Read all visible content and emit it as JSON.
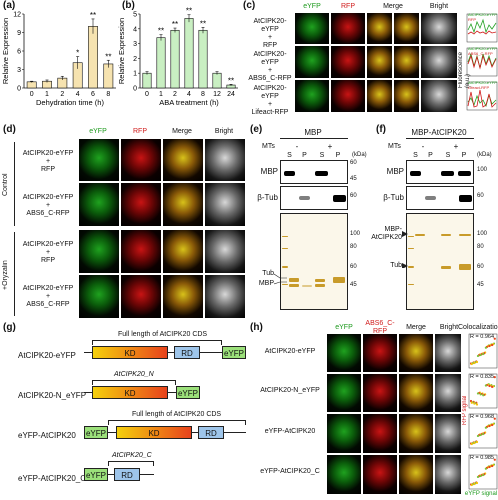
{
  "panels": {
    "a": {
      "label": "(a)"
    },
    "b": {
      "label": "(b)"
    },
    "c": {
      "label": "(c)"
    },
    "d": {
      "label": "(d)"
    },
    "e": {
      "label": "(e)"
    },
    "f": {
      "label": "(f)"
    },
    "g": {
      "label": "(g)"
    },
    "h": {
      "label": "(h)"
    }
  },
  "chart_data": [
    {
      "type": "bar",
      "panel": "a",
      "categories": [
        "0",
        "1",
        "2",
        "4",
        "6",
        "8"
      ],
      "values": [
        1.0,
        1.1,
        1.6,
        4.1,
        10.0,
        3.9
      ],
      "errors": [
        0.1,
        0.2,
        0.3,
        1.0,
        1.2,
        0.6
      ],
      "significance": [
        "",
        "",
        "",
        "*",
        "**",
        "**"
      ],
      "xlabel": "Dehydration time (h)",
      "ylabel": "Relative Expression",
      "yticks": [
        "0",
        "3",
        "6",
        "9",
        "12"
      ],
      "ylim": [
        0,
        12
      ],
      "color": "#f6e3b0"
    },
    {
      "type": "bar",
      "panel": "b",
      "categories": [
        "0",
        "1",
        "2",
        "4",
        "8",
        "12",
        "24"
      ],
      "values": [
        1.0,
        3.4,
        3.9,
        4.7,
        3.9,
        1.0,
        0.2
      ],
      "errors": [
        0.1,
        0.2,
        0.15,
        0.25,
        0.2,
        0.1,
        0.05
      ],
      "significance": [
        "",
        "**",
        "**",
        "**",
        "**",
        "",
        "**"
      ],
      "xlabel": "ABA treatment (h)",
      "ylabel": "Relative Expression",
      "yticks": [
        "0",
        "1",
        "2",
        "3",
        "4",
        "5"
      ],
      "ylim": [
        0,
        5
      ],
      "color": "#c9efc2"
    }
  ],
  "c": {
    "col_headers": [
      "eYFP",
      "RFP",
      "Merge",
      "Bright"
    ],
    "rows": [
      {
        "line1": "AtCIPK20-eYFP",
        "line2": "+",
        "line3": "RFP"
      },
      {
        "line1": "AtCIPK20-eYFP",
        "line2": "+",
        "line3": "ABS6_C-RFP"
      },
      {
        "line1": "AtCIPK20-eYFP",
        "line2": "+",
        "line3": "Lifeact-RFP"
      }
    ],
    "profile_ylabel": "Fluorescence (a.u.)",
    "profile_legends": [
      [
        "AtCIPK20-eYFP",
        "RFP"
      ],
      [
        "AtCIPK20-eYFP",
        "ABS6_C-RFP"
      ],
      [
        "AtCIPK20-eYFP",
        "Lifeact-RFP"
      ]
    ]
  },
  "d": {
    "col_headers": [
      "eYFP",
      "RFP",
      "Merge",
      "Bright"
    ],
    "groups": [
      "Control",
      "+Oryzalin"
    ],
    "rows": [
      {
        "line1": "AtCIPK20-eYFP",
        "line2": "+",
        "line3": "RFP"
      },
      {
        "line1": "AtCIPK20-eYFP",
        "line2": "+",
        "line3": "ABS6_C-RFP"
      },
      {
        "line1": "AtCIPK20-eYFP",
        "line2": "+",
        "line3": "RFP"
      },
      {
        "line1": "AtCIPK20-eYFP",
        "line2": "+",
        "line3": "ABS6_C-RFP"
      }
    ]
  },
  "e": {
    "title": "MBP",
    "mts_label": "MTs",
    "minus": "-",
    "plus": "+",
    "lanes": [
      "S",
      "P",
      "S",
      "P"
    ],
    "kda": "(kDa)",
    "blot1": "MBP",
    "blot2": "β-Tub",
    "blot1_marks": [
      "60",
      "45"
    ],
    "blot2_marks": [
      "60"
    ],
    "gel_marks": [
      "100",
      "80",
      "60",
      "45"
    ],
    "gel_tub": "Tub",
    "gel_mbp": "MBP"
  },
  "f": {
    "title": "MBP-AtCIPK20",
    "mts_label": "MTs",
    "minus": "-",
    "plus": "+",
    "lanes": [
      "S",
      "P",
      "S",
      "P"
    ],
    "kda": "(kDa)",
    "blot1": "MBP",
    "blot2": "β-Tub",
    "blot1_marks": [
      "100"
    ],
    "blot2_marks": [
      "60"
    ],
    "gel_marks": [
      "100",
      "80",
      "60",
      "45"
    ],
    "gel_fusion": "MBP-AtCIPK20",
    "gel_tub": "Tub"
  },
  "g": {
    "constructs": [
      {
        "name": "AtCIPK20-eYFP",
        "caption": "Full length of AtCIPK20 CDS"
      },
      {
        "name": "AtCIPK20-N_eYFP",
        "caption": "AtCIPK20_N"
      },
      {
        "name": "eYFP-AtCIPK20",
        "caption": "Full length of AtCIPK20 CDS"
      },
      {
        "name": "eYFP-AtCIPK20_C",
        "caption": "AtCIPK20_C"
      }
    ],
    "domain_kd": "KD",
    "domain_rd": "RD",
    "domain_eyfp": "eYFP"
  },
  "h": {
    "col_headers": [
      "eYFP",
      "ABS6_C-RFP",
      "Merge",
      "Bright",
      "Colocalization"
    ],
    "rows": [
      {
        "name": "AtCIPK20-eYFP",
        "r": "R = 0.964"
      },
      {
        "name": "AtCIPK20-N_eYFP",
        "r": "R = 0.835"
      },
      {
        "name": "eYFP-AtCIPK20",
        "r": "R = 0.968"
      },
      {
        "name": "eYFP-AtCIPK20_C",
        "r": "R = 0.985"
      }
    ],
    "coloc_ylabel": "RFP signal",
    "coloc_xlabel": "eYFP signal"
  },
  "colors": {
    "eyfp": "#22a022",
    "rfp": "#d01a1a",
    "kd_start": "#f5d10c",
    "kd_end": "#e8421c",
    "rd": "#9ec5ea",
    "eyfp_box": "#9be07a"
  }
}
